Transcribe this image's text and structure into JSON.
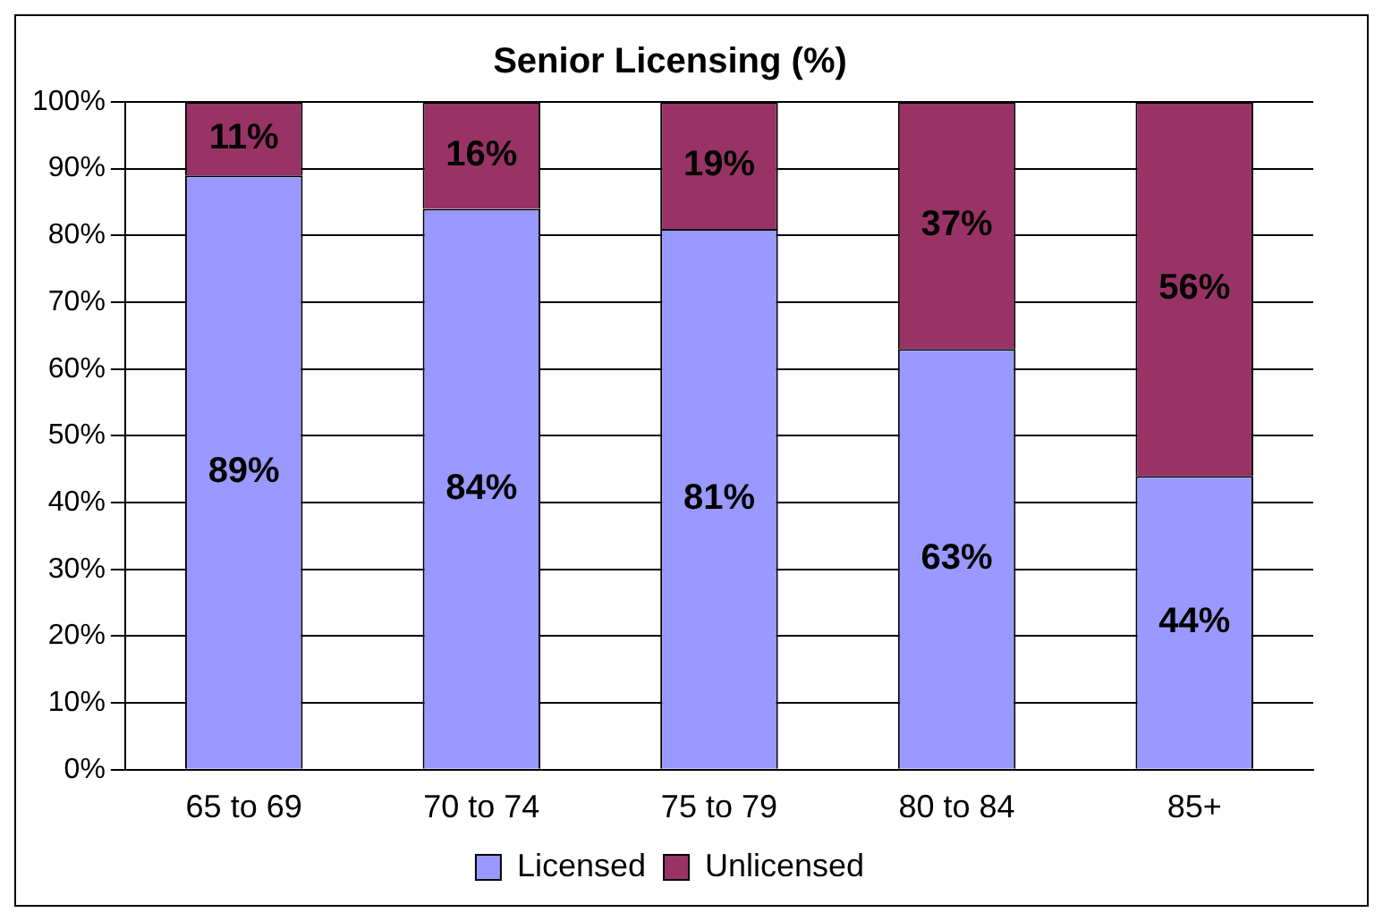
{
  "chart_data": {
    "type": "bar",
    "title": "Senior Licensing (%)",
    "categories": [
      "65 to 69",
      "70 to 74",
      "75 to 79",
      "80 to 84",
      "85+"
    ],
    "stacked": true,
    "series": [
      {
        "name": "Licensed",
        "color": "#9999ff",
        "values": [
          89,
          84,
          81,
          63,
          44
        ],
        "value_labels": [
          "89%",
          "84%",
          "81%",
          "63%",
          "44%"
        ]
      },
      {
        "name": "Unlicensed",
        "color": "#993366",
        "values": [
          11,
          16,
          19,
          37,
          56
        ],
        "value_labels": [
          "11%",
          "16%",
          "19%",
          "37%",
          "56%"
        ]
      }
    ],
    "ylim": [
      0,
      100
    ],
    "yticks": [
      {
        "value": 0,
        "label": "0%"
      },
      {
        "value": 10,
        "label": "10%"
      },
      {
        "value": 20,
        "label": "20%"
      },
      {
        "value": 30,
        "label": "30%"
      },
      {
        "value": 40,
        "label": "40%"
      },
      {
        "value": 50,
        "label": "50%"
      },
      {
        "value": 60,
        "label": "60%"
      },
      {
        "value": 70,
        "label": "70%"
      },
      {
        "value": 80,
        "label": "80%"
      },
      {
        "value": 90,
        "label": "90%"
      },
      {
        "value": 100,
        "label": "100%"
      }
    ],
    "grid": "y",
    "legend": "bottom"
  }
}
